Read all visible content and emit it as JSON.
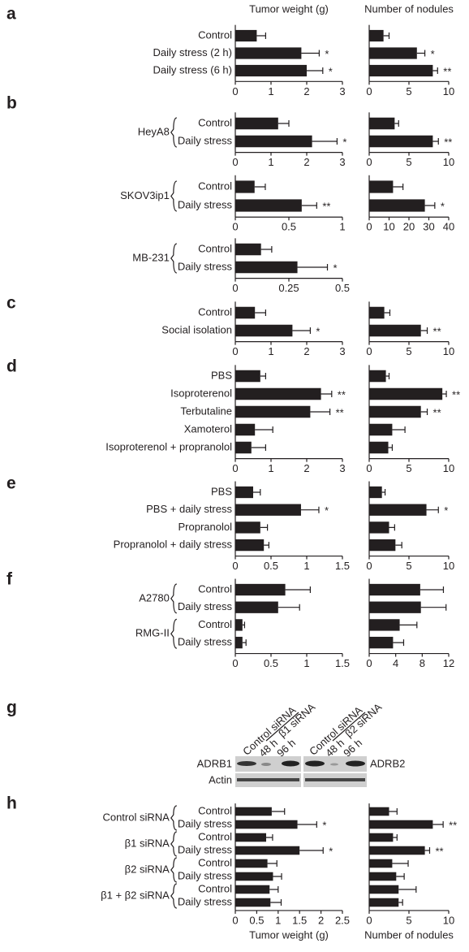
{
  "chart_data": [
    {
      "type": "bar",
      "panel": "a",
      "color": "#231f20",
      "categories": [
        "Control",
        "Daily stress (2 h)",
        "Daily stress (6 h)"
      ],
      "left": {
        "title": "Tumor weight (g)",
        "xlim": [
          0,
          3
        ],
        "xticks": [
          0,
          1,
          2,
          3
        ],
        "values": [
          0.6,
          1.85,
          2.0
        ],
        "errors": [
          0.25,
          0.5,
          0.45
        ],
        "significance": [
          null,
          "*",
          "*"
        ]
      },
      "right": {
        "title": "Number of nodules",
        "xlim": [
          0,
          10
        ],
        "xticks": [
          0,
          5,
          10
        ],
        "values": [
          1.8,
          6.0,
          8.0
        ],
        "errors": [
          0.7,
          1.0,
          0.6
        ],
        "significance": [
          null,
          "*",
          "**"
        ]
      }
    },
    {
      "type": "bar",
      "panel": "b",
      "color": "#231f20",
      "categories": [
        "Control",
        "Daily stress"
      ],
      "category_groups": [
        "HeyA8",
        "HeyA8"
      ],
      "left": {
        "xlim": [
          0,
          3
        ],
        "xticks": [
          0,
          1,
          2,
          3
        ],
        "values": [
          1.2,
          2.15
        ],
        "errors": [
          0.3,
          0.7
        ],
        "significance": [
          null,
          "*"
        ]
      },
      "right": {
        "xlim": [
          0,
          10
        ],
        "xticks": [
          0,
          5,
          10
        ],
        "values": [
          3.2,
          8.0
        ],
        "errors": [
          0.5,
          0.7
        ],
        "significance": [
          null,
          "**"
        ]
      }
    },
    {
      "type": "bar",
      "color": "#231f20",
      "categories": [
        "Control",
        "Daily stress"
      ],
      "category_groups": [
        "SKOV3ip1",
        "SKOV3ip1"
      ],
      "left": {
        "xlim": [
          0,
          1
        ],
        "xticks": [
          0,
          0.5,
          1
        ],
        "values": [
          0.18,
          0.62
        ],
        "errors": [
          0.1,
          0.14
        ],
        "significance": [
          null,
          "**"
        ]
      },
      "right": {
        "xlim": [
          0,
          40
        ],
        "xticks": [
          0,
          10,
          20,
          30,
          40
        ],
        "values": [
          12,
          28
        ],
        "errors": [
          5,
          5
        ],
        "significance": [
          null,
          "*"
        ]
      }
    },
    {
      "type": "bar",
      "color": "#231f20",
      "categories": [
        "Control",
        "Daily stress"
      ],
      "category_groups": [
        "MB-231",
        "MB-231"
      ],
      "left": {
        "xlim": [
          0,
          0.5
        ],
        "xticks": [
          0,
          0.25,
          0.5
        ],
        "values": [
          0.12,
          0.29
        ],
        "errors": [
          0.05,
          0.14
        ],
        "significance": [
          null,
          "*"
        ]
      }
    },
    {
      "type": "bar",
      "panel": "c",
      "color": "#231f20",
      "categories": [
        "Control",
        "Social isolation"
      ],
      "left": {
        "xlim": [
          0,
          3
        ],
        "xticks": [
          0,
          1,
          2,
          3
        ],
        "values": [
          0.55,
          1.6
        ],
        "errors": [
          0.3,
          0.5
        ],
        "significance": [
          null,
          "*"
        ]
      },
      "right": {
        "xlim": [
          0,
          10
        ],
        "xticks": [
          0,
          5,
          10
        ],
        "values": [
          1.9,
          6.5
        ],
        "errors": [
          0.7,
          0.8
        ],
        "significance": [
          null,
          "**"
        ]
      }
    },
    {
      "type": "bar",
      "panel": "d",
      "color": "#231f20",
      "categories": [
        "PBS",
        "Isoproterenol",
        "Terbutaline",
        "Xamoterol",
        "Isoproterenol + propranolol"
      ],
      "left": {
        "xlim": [
          0,
          3
        ],
        "xticks": [
          0,
          1,
          2,
          3
        ],
        "values": [
          0.7,
          2.4,
          2.1,
          0.55,
          0.45
        ],
        "errors": [
          0.15,
          0.3,
          0.55,
          0.5,
          0.4
        ],
        "significance": [
          null,
          "**",
          "**",
          null,
          null
        ]
      },
      "right": {
        "xlim": [
          0,
          10
        ],
        "xticks": [
          0,
          5,
          10
        ],
        "values": [
          2.1,
          9.2,
          6.5,
          2.9,
          2.4
        ],
        "errors": [
          0.4,
          0.5,
          0.8,
          1.6,
          0.5
        ],
        "significance": [
          null,
          "**",
          "**",
          null,
          null
        ]
      }
    },
    {
      "type": "bar",
      "panel": "e",
      "color": "#231f20",
      "categories": [
        "PBS",
        "PBS + daily stress",
        "Propranolol",
        "Propranolol + daily stress"
      ],
      "left": {
        "xlim": [
          0,
          1.5
        ],
        "xticks": [
          0,
          0.5,
          1,
          1.5
        ],
        "values": [
          0.25,
          0.92,
          0.35,
          0.4
        ],
        "errors": [
          0.1,
          0.25,
          0.1,
          0.07
        ],
        "significance": [
          null,
          "*",
          null,
          null
        ]
      },
      "right": {
        "xlim": [
          0,
          10
        ],
        "xticks": [
          0,
          5,
          10
        ],
        "values": [
          1.6,
          7.2,
          2.5,
          3.3
        ],
        "errors": [
          0.4,
          1.5,
          0.7,
          0.8
        ],
        "significance": [
          null,
          "*",
          null,
          null
        ]
      }
    },
    {
      "type": "bar",
      "panel": "f",
      "color": "#231f20",
      "categories": [
        "Control",
        "Daily stress",
        "Control",
        "Daily stress"
      ],
      "category_groups": [
        "A2780",
        "A2780",
        "RMG-II",
        "RMG-II"
      ],
      "left": {
        "xlim": [
          0,
          1.5
        ],
        "xticks": [
          0,
          0.5,
          1,
          1.5
        ],
        "values": [
          0.7,
          0.6,
          0.1,
          0.1
        ],
        "errors": [
          0.35,
          0.3,
          0.03,
          0.05
        ],
        "significance": [
          null,
          null,
          null,
          null
        ]
      },
      "right": {
        "xlim": [
          0,
          12
        ],
        "xticks": [
          0,
          4,
          8,
          12
        ],
        "values": [
          7.7,
          7.8,
          4.6,
          3.6
        ],
        "errors": [
          3.5,
          3.8,
          2.6,
          1.6
        ],
        "significance": [
          null,
          null,
          null,
          null
        ]
      }
    },
    {
      "type": "bar",
      "panel": "h",
      "color": "#231f20",
      "categories": [
        "Control",
        "Daily stress",
        "Control",
        "Daily stress",
        "Control",
        "Daily stress",
        "Control",
        "Daily stress"
      ],
      "category_groups": [
        "Control siRNA",
        "Control siRNA",
        "β1 siRNA",
        "β1 siRNA",
        "β2 siRNA",
        "β2 siRNA",
        "β1 + β2 siRNA",
        "β1 + β2 siRNA"
      ],
      "left": {
        "xlabel": "Tumor weight (g)",
        "xlim": [
          0,
          2.5
        ],
        "xticks": [
          0,
          0.5,
          1,
          1.5,
          2,
          2.5
        ],
        "values": [
          0.85,
          1.45,
          0.72,
          1.5,
          0.75,
          0.88,
          0.8,
          0.82
        ],
        "errors": [
          0.3,
          0.45,
          0.15,
          0.55,
          0.22,
          0.2,
          0.2,
          0.25
        ],
        "significance": [
          null,
          "*",
          null,
          "*",
          null,
          null,
          null,
          null
        ]
      },
      "right": {
        "xlabel": "Number of nodules",
        "xlim": [
          0,
          10
        ],
        "xticks": [
          0,
          5,
          10
        ],
        "values": [
          2.5,
          8.0,
          3.0,
          7.0,
          2.9,
          3.4,
          3.7,
          3.7
        ],
        "errors": [
          1.0,
          1.3,
          0.5,
          0.6,
          2.0,
          1.0,
          2.2,
          0.5
        ],
        "significance": [
          null,
          "**",
          null,
          "**",
          null,
          null,
          null,
          null
        ]
      }
    }
  ],
  "blot": {
    "panel": "g",
    "left": {
      "lanes": [
        "Control siRNA",
        "β1 siRNA"
      ],
      "times": [
        "48 h",
        "96 h"
      ],
      "row_label": "ADRB1"
    },
    "right": {
      "lanes": [
        "Control siRNA",
        "β2 siRNA"
      ],
      "times": [
        "48 h",
        "96 h"
      ],
      "row_label": "ADRB2"
    },
    "loading": "Actin"
  }
}
